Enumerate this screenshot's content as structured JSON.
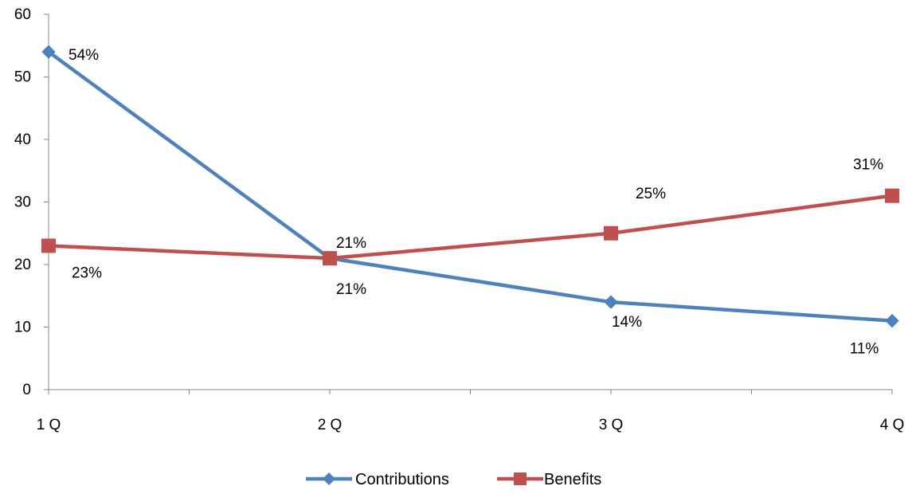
{
  "chart_data": {
    "type": "line",
    "categories": [
      "1 Q",
      "2 Q",
      "3 Q",
      "4 Q"
    ],
    "ylim": [
      0,
      60
    ],
    "yticks": [
      "0",
      "10",
      "20",
      "30",
      "40",
      "50",
      "60"
    ],
    "grid": false,
    "legend_position": "bottom",
    "series": [
      {
        "name": "Contributions",
        "values": [
          54,
          21,
          14,
          11
        ],
        "labels": [
          "54%",
          "21%",
          "14%",
          "11%"
        ],
        "color": "#4F81BD",
        "marker": "diamond"
      },
      {
        "name": "Benefits",
        "values": [
          23,
          21,
          25,
          31
        ],
        "labels": [
          "23%",
          "21%",
          "25%",
          "31%"
        ],
        "color": "#C0504D",
        "marker": "square"
      }
    ]
  }
}
